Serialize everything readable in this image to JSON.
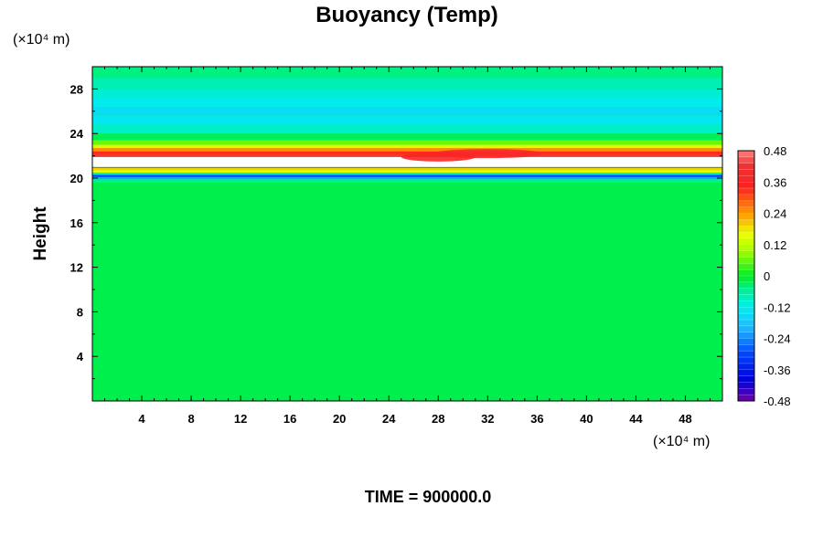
{
  "chart_data": {
    "type": "heatmap",
    "title": "Buoyancy (Temp)",
    "ylabel": "Height",
    "xlabel": "",
    "x_unit": "(×10⁴ m)",
    "y_unit": "(×10⁴ m)",
    "footer": "TIME = 900000.0",
    "xlim": [
      0,
      51
    ],
    "ylim": [
      0,
      30
    ],
    "x_ticks": [
      "4",
      "8",
      "12",
      "16",
      "20",
      "24",
      "28",
      "32",
      "36",
      "40",
      "44",
      "48"
    ],
    "y_ticks": [
      "4",
      "8",
      "12",
      "16",
      "20",
      "24",
      "28"
    ],
    "colorbar": {
      "range": [
        -0.48,
        0.48
      ],
      "ticks": [
        "0.48",
        "0.36",
        "0.24",
        "0.12",
        "0",
        "-0.12",
        "-0.24",
        "-0.36",
        "-0.48"
      ],
      "colors": {
        "high": "#ff7f7f",
        "red": "#ff2020",
        "orange": "#ff9900",
        "yellow": "#e8ff00",
        "zero": "#00ee22",
        "cyan": "#00eeee",
        "light_blue": "#20b8ff",
        "blue": "#0000dd",
        "low": "#7000aa"
      }
    },
    "vertical_profile": [
      {
        "height": 0,
        "value": -0.02
      },
      {
        "height": 19.6,
        "value": -0.02
      },
      {
        "height": 19.9,
        "value": -0.09
      },
      {
        "height": 20.1,
        "value": -0.34
      },
      {
        "height": 20.3,
        "value": -0.26
      },
      {
        "height": 20.5,
        "value": 0.05
      },
      {
        "height": 20.7,
        "value": 0.27
      },
      {
        "height": 20.9,
        "value": 0.12
      },
      {
        "height": 21.0,
        "value": 0.49
      },
      {
        "height": 21.9,
        "value": 0.49
      },
      {
        "height": 22.1,
        "value": 0.36
      },
      {
        "height": 22.4,
        "value": 0.3
      },
      {
        "height": 22.7,
        "value": 0.2
      },
      {
        "height": 23.0,
        "value": 0.1
      },
      {
        "height": 23.4,
        "value": 0.02
      },
      {
        "height": 24.0,
        "value": -0.07
      },
      {
        "height": 24.8,
        "value": -0.11
      },
      {
        "height": 25.6,
        "value": -0.15
      },
      {
        "height": 26.4,
        "value": -0.14
      },
      {
        "height": 27.2,
        "value": -0.11
      },
      {
        "height": 28.0,
        "value": -0.09
      },
      {
        "height": 29.0,
        "value": -0.06
      },
      {
        "height": 30.0,
        "value": -0.03
      }
    ],
    "features": [
      {
        "x_center": 32,
        "x_width": 9,
        "height": 22.2,
        "value": 0.38
      },
      {
        "x_center": 28,
        "x_width": 6,
        "height": 21.9,
        "value": 0.36
      }
    ]
  }
}
